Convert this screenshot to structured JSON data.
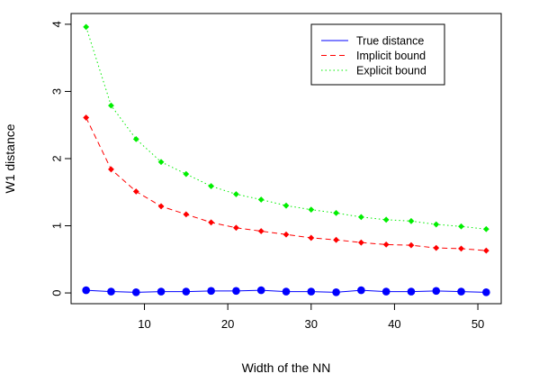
{
  "chart_data": {
    "type": "line",
    "title": "",
    "xlabel": "Width of the NN",
    "ylabel": "W1 distance",
    "xlim": [
      1.2,
      52.8
    ],
    "ylim": [
      -0.16,
      4.16
    ],
    "xticks": [
      10,
      20,
      30,
      40,
      50
    ],
    "yticks": [
      0,
      1,
      2,
      3,
      4
    ],
    "x": [
      3,
      6,
      9,
      12,
      15,
      18,
      21,
      24,
      27,
      30,
      33,
      36,
      39,
      42,
      45,
      48,
      51
    ],
    "legend_position": "top-right",
    "series": [
      {
        "name": "True distance",
        "color": "#0000FF",
        "line_style": "solid",
        "marker": "circle",
        "values": [
          0.04,
          0.02,
          0.01,
          0.02,
          0.02,
          0.03,
          0.03,
          0.04,
          0.02,
          0.02,
          0.01,
          0.04,
          0.02,
          0.02,
          0.03,
          0.02,
          0.01
        ]
      },
      {
        "name": "Implicit bound",
        "color": "#FF0000",
        "line_style": "dashed",
        "marker": "diamond",
        "values": [
          2.61,
          1.84,
          1.51,
          1.29,
          1.17,
          1.05,
          0.97,
          0.92,
          0.87,
          0.82,
          0.79,
          0.75,
          0.72,
          0.71,
          0.67,
          0.66,
          0.63
        ]
      },
      {
        "name": "Explicit bound",
        "color": "#00EE00",
        "line_style": "dotted",
        "marker": "diamond",
        "values": [
          3.96,
          2.79,
          2.29,
          1.95,
          1.77,
          1.59,
          1.47,
          1.39,
          1.3,
          1.24,
          1.19,
          1.13,
          1.09,
          1.07,
          1.02,
          0.99,
          0.95
        ]
      }
    ]
  }
}
